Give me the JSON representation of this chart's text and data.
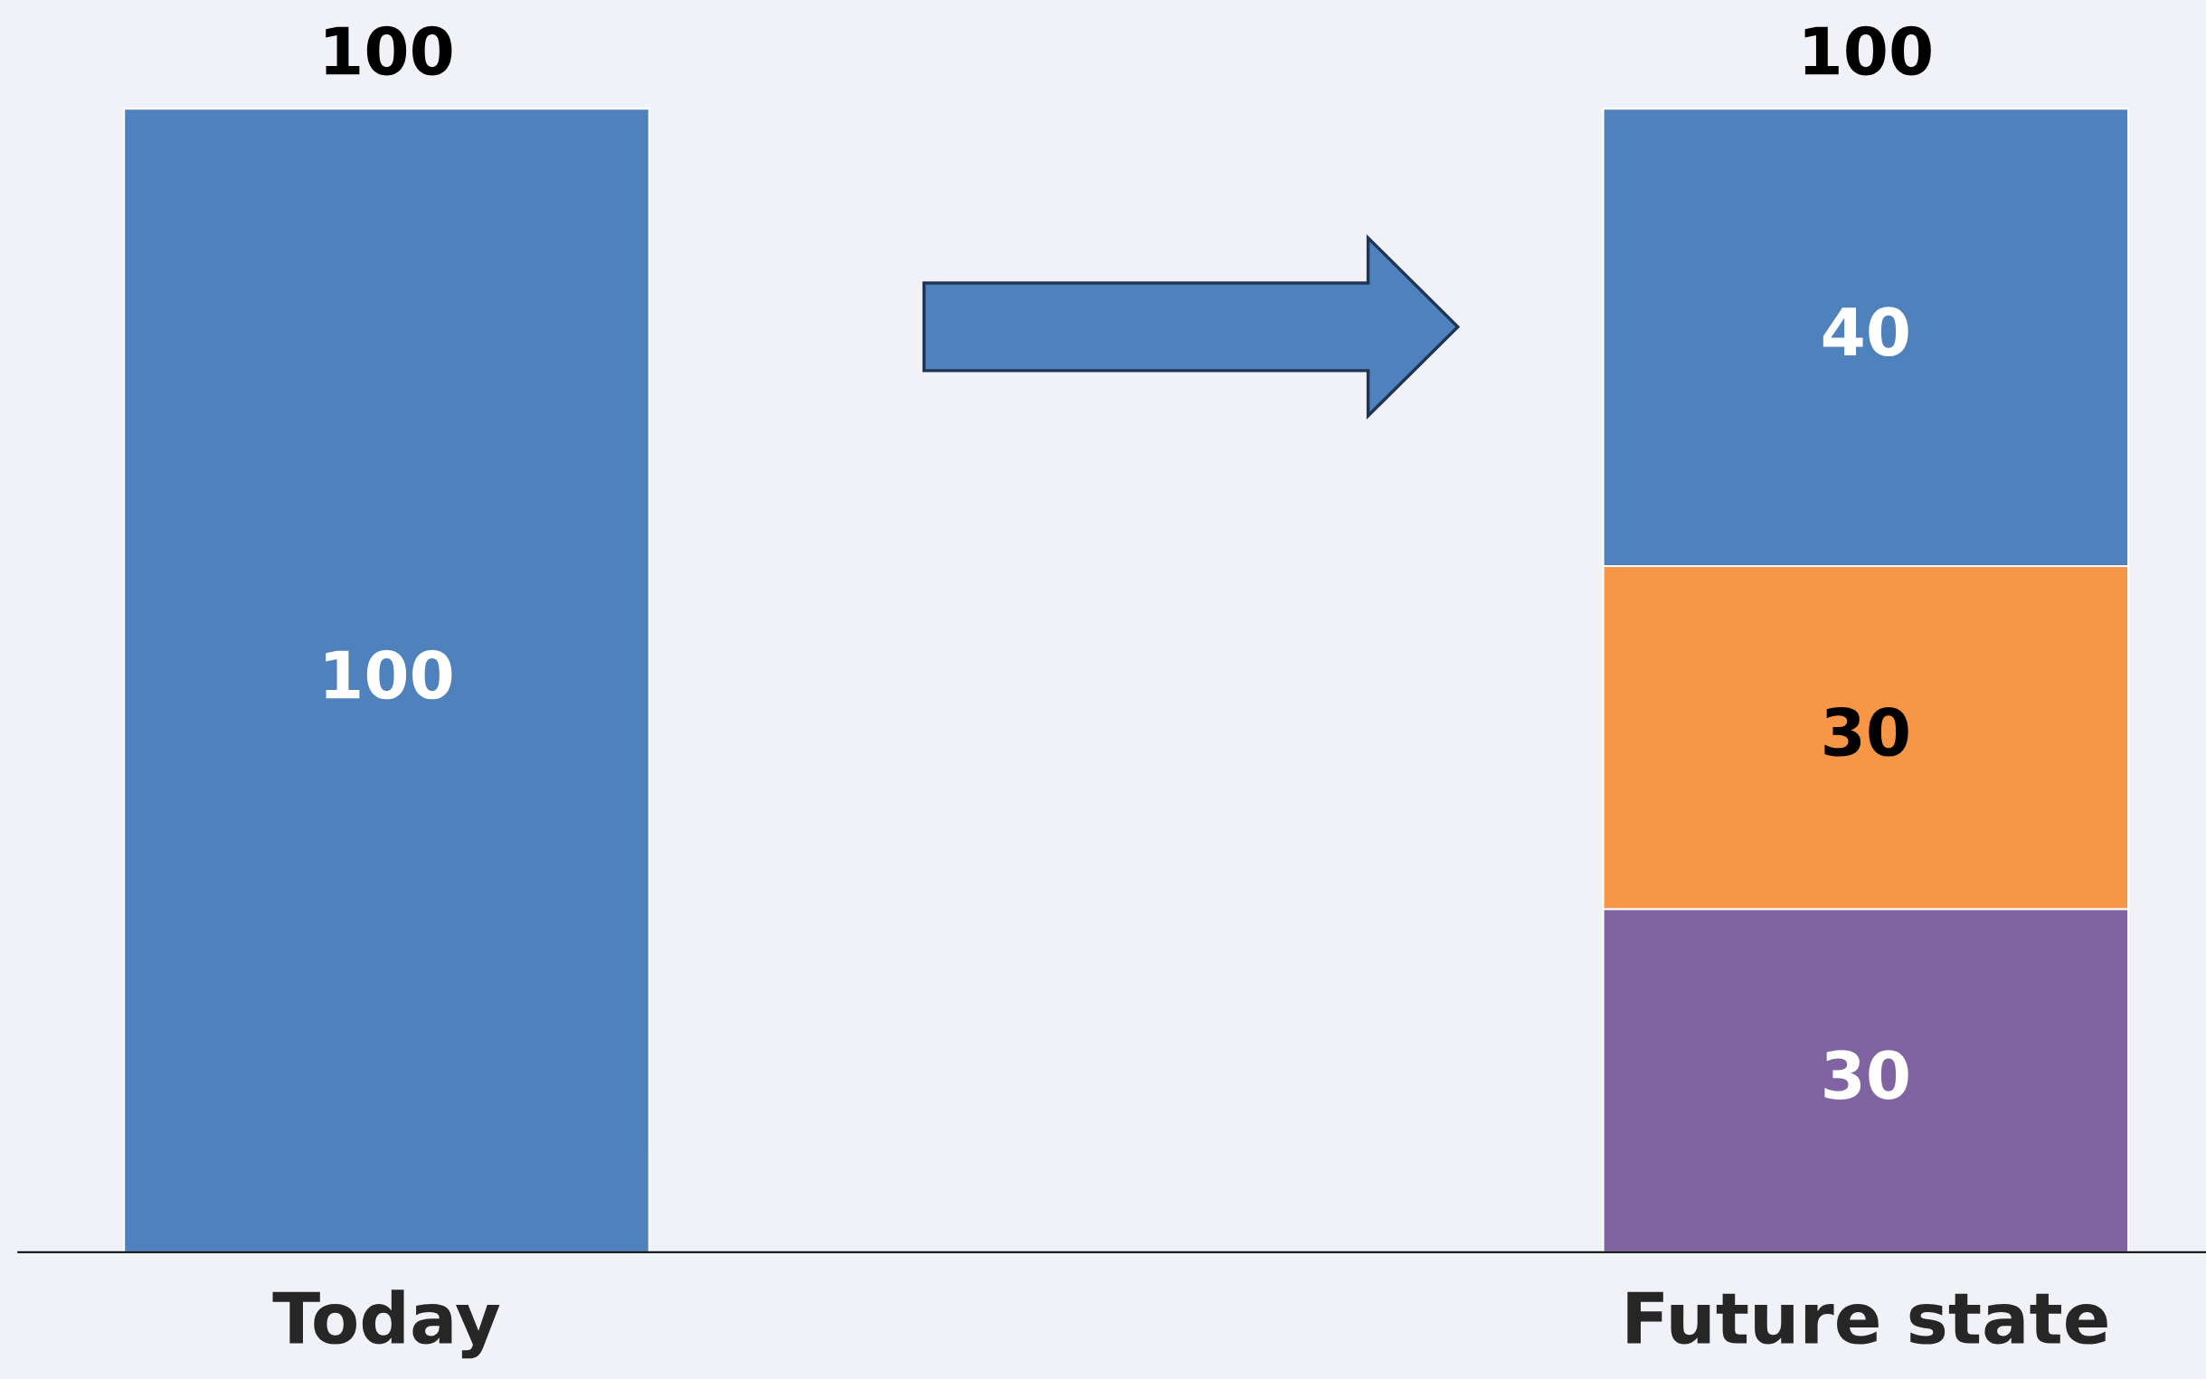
{
  "chart_data": {
    "type": "bar",
    "stacked": true,
    "categories": [
      "Today",
      "Future state"
    ],
    "series": [
      {
        "color": "#8064a2",
        "values": [
          null,
          30
        ]
      },
      {
        "color": "#f79646",
        "values": [
          null,
          30
        ]
      },
      {
        "color": "#4f81bd",
        "values": [
          100,
          40
        ]
      }
    ],
    "data_labels": true,
    "totals": [
      "100",
      "100"
    ],
    "grid": false,
    "legend": false
  }
}
